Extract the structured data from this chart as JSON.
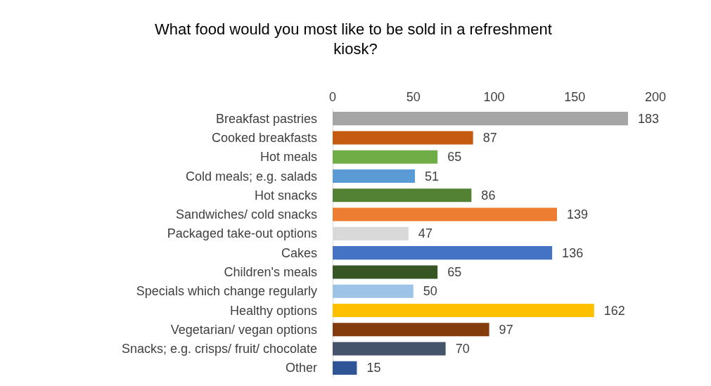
{
  "chart_data": {
    "type": "bar",
    "orientation": "horizontal",
    "title": "What food would you most like to be sold in a refreshment kiosk?",
    "categories": [
      "Breakfast pastries",
      "Cooked breakfasts",
      "Hot meals",
      "Cold meals; e.g. salads",
      "Hot snacks",
      "Sandwiches/ cold snacks",
      "Packaged take-out options",
      "Cakes",
      "Children's meals",
      "Specials which change regularly",
      "Healthy options",
      "Vegetarian/ vegan options",
      "Snacks; e.g. crisps/ fruit/ chocolate",
      "Other"
    ],
    "values": [
      183,
      87,
      65,
      51,
      86,
      139,
      47,
      136,
      65,
      50,
      162,
      97,
      70,
      15
    ],
    "colors": [
      "#a5a5a5",
      "#c55a11",
      "#70ad47",
      "#5b9bd5",
      "#548235",
      "#ed7d31",
      "#d9d9d9",
      "#4472c4",
      "#375623",
      "#9dc3e6",
      "#ffc000",
      "#843c0c",
      "#44546a",
      "#2f5597"
    ],
    "xlim": [
      0,
      200
    ],
    "xticks": [
      0,
      50,
      100,
      150,
      200
    ],
    "data_labels": true,
    "grid": false
  }
}
